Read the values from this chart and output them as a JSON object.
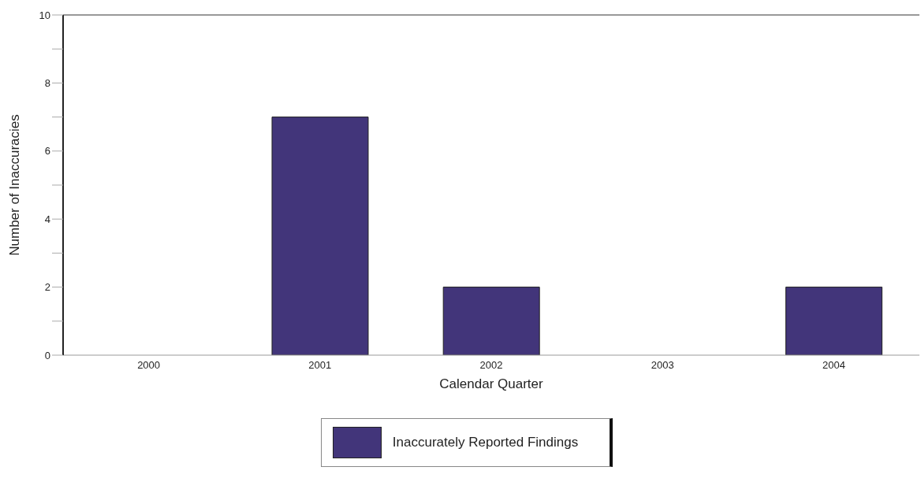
{
  "chart_data": {
    "type": "bar",
    "xlabel": "Calendar Quarter",
    "ylabel": "Number of Inaccuracies",
    "categories": [
      "2000",
      "2001",
      "2002",
      "2003",
      "2004"
    ],
    "series": [
      {
        "name": "Inaccurately Reported Findings",
        "color": "#42357a",
        "values": [
          0,
          7,
          2,
          0,
          2
        ]
      }
    ],
    "ylim": [
      0,
      10
    ],
    "yticks": [
      0,
      {
        "value": 1,
        "label": null
      },
      2,
      {
        "value": 3,
        "label": null
      },
      4,
      {
        "value": 5,
        "label": null
      },
      6,
      {
        "value": 7,
        "label": null
      },
      8,
      {
        "value": 9,
        "label": null
      },
      10
    ],
    "grid": false,
    "legend": "bottom"
  }
}
